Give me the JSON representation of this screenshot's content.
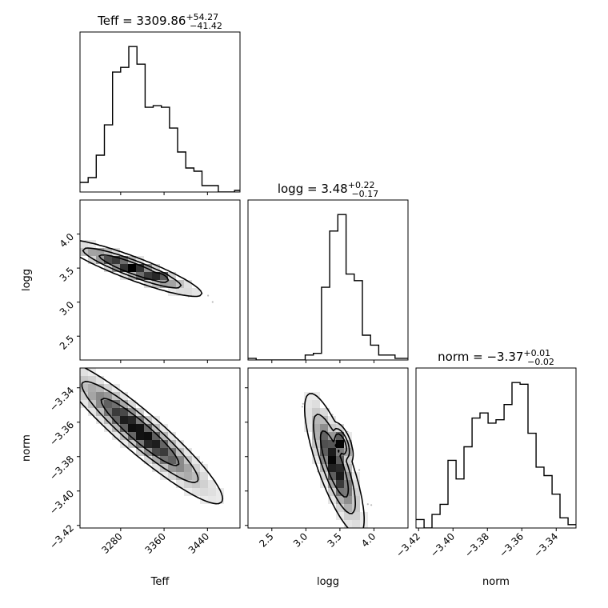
{
  "chart_data": {
    "type": "corner",
    "parameters": [
      {
        "name": "Teff",
        "label": "Teff",
        "title_prefix": "Teff = ",
        "median": "3309.86",
        "plus": "+54.27",
        "minus": "−41.42"
      },
      {
        "name": "logg",
        "label": "logg",
        "title_prefix": "logg = ",
        "median": "3.48",
        "plus": "+0.22",
        "minus": "−0.17"
      },
      {
        "name": "norm",
        "label": "norm",
        "title_prefix": "norm = ",
        "median": "−3.37",
        "plus": "+0.01",
        "minus": "−0.02"
      }
    ],
    "ranges": {
      "Teff": [
        3205,
        3500
      ],
      "logg": [
        2.15,
        4.5
      ],
      "norm": [
        -3.4215,
        -3.3285
      ]
    },
    "ticks": {
      "Teff": {
        "values": [
          3280,
          3360,
          3440
        ],
        "labels": [
          "3280",
          "3360",
          "3440"
        ]
      },
      "logg": {
        "values": [
          2.5,
          3.0,
          3.5,
          4.0
        ],
        "labels": [
          "2.5",
          "3.0",
          "3.5",
          "4.0"
        ]
      },
      "norm": {
        "values": [
          -3.42,
          -3.4,
          -3.38,
          -3.36,
          -3.34
        ],
        "labels": [
          "−3.42",
          "−3.40",
          "−3.38",
          "−3.36",
          "−3.34"
        ]
      }
    },
    "histograms": {
      "Teff": {
        "edges": [
          3205,
          3220,
          3235,
          3250,
          3265,
          3280,
          3295,
          3310,
          3325,
          3340,
          3355,
          3370,
          3385,
          3400,
          3415,
          3430,
          3445,
          3460,
          3475,
          3490,
          3505
        ],
        "counts": [
          6,
          9,
          23,
          42,
          75,
          78,
          91,
          80,
          53,
          54,
          53,
          40,
          25,
          15,
          13,
          4,
          4,
          0,
          0,
          1
        ]
      },
      "logg": {
        "edges": [
          2.15,
          2.27,
          2.39,
          2.51,
          2.63,
          2.75,
          2.87,
          2.99,
          3.11,
          3.23,
          3.35,
          3.47,
          3.59,
          3.71,
          3.83,
          3.95,
          4.07,
          4.19,
          4.31,
          4.43,
          4.55
        ],
        "counts": [
          1,
          0,
          0,
          0,
          0,
          0,
          0,
          3,
          4,
          44,
          78,
          88,
          52,
          48,
          15,
          9,
          3,
          3,
          1,
          1
        ]
      },
      "norm": {
        "edges": [
          -3.4215,
          -3.4168,
          -3.4122,
          -3.4075,
          -3.4029,
          -3.3982,
          -3.3936,
          -3.3889,
          -3.3843,
          -3.3796,
          -3.375,
          -3.3703,
          -3.3657,
          -3.361,
          -3.3564,
          -3.3517,
          -3.3471,
          -3.3424,
          -3.3378,
          -3.3331,
          -3.3285
        ],
        "counts": [
          5,
          0,
          8,
          14,
          40,
          29,
          48,
          65,
          68,
          62,
          64,
          73,
          86,
          85,
          56,
          36,
          31,
          20,
          6,
          2
        ]
      }
    }
  }
}
